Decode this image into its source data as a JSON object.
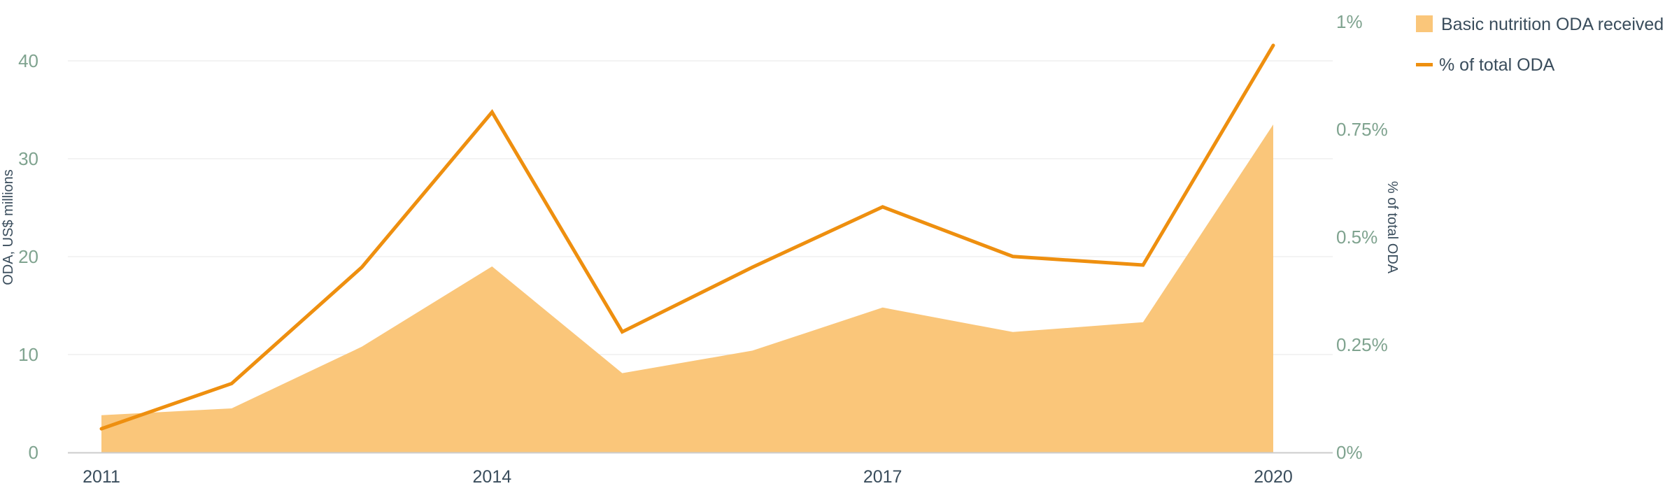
{
  "chart_data": {
    "type": "area",
    "x": [
      2011,
      2012,
      2013,
      2014,
      2015,
      2016,
      2017,
      2018,
      2019,
      2020
    ],
    "x_ticks": [
      "2011",
      "2014",
      "2017",
      "2020"
    ],
    "series": [
      {
        "name": "Basic nutrition ODA received",
        "type": "area",
        "axis": "left",
        "values": [
          3.8,
          4.5,
          10.8,
          19.0,
          8.1,
          10.4,
          14.8,
          12.3,
          13.3,
          33.5
        ]
      },
      {
        "name": "% of total ODA",
        "type": "line",
        "axis": "right",
        "values": [
          0.055,
          0.16,
          0.43,
          0.79,
          0.28,
          0.43,
          0.57,
          0.455,
          0.435,
          0.945
        ]
      }
    ],
    "left_axis": {
      "label": "ODA, US$ millions",
      "range": [
        0,
        44
      ],
      "ticks": [
        "0",
        "10",
        "20",
        "30",
        "40"
      ],
      "tick_values": [
        0,
        10,
        20,
        30,
        40
      ]
    },
    "right_axis": {
      "label": "% of total ODA",
      "range": [
        0,
        1
      ],
      "ticks": [
        "0%",
        "0.25%",
        "0.5%",
        "0.75%",
        "1%"
      ],
      "tick_values": [
        0,
        0.25,
        0.5,
        0.75,
        1
      ]
    },
    "grid": true,
    "legend_position": "top-right",
    "colors": {
      "area_fill": "#fac67a",
      "line": "#ee8f0f",
      "grid": "#ececec",
      "axis_line": "#cccccc",
      "left_tick_text": "#7fa38f",
      "right_tick_text": "#7fa38f",
      "x_tick_text": "#3a4d5c",
      "axis_label_text": "#3a4d5c",
      "legend_text": "#3a4d5c"
    }
  }
}
